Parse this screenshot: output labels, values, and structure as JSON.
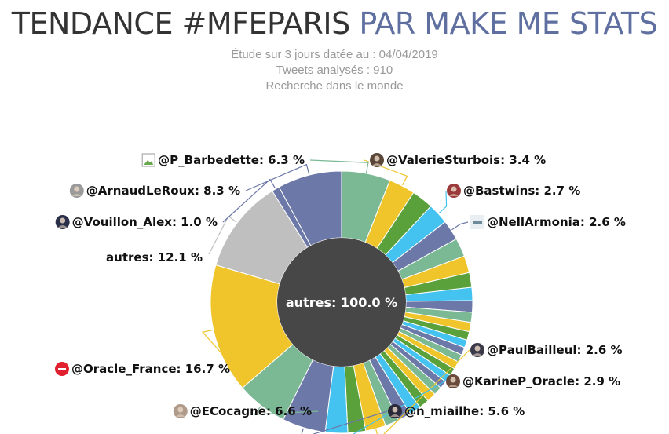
{
  "header": {
    "title_part1": "TENDANCE #MFEPARIS",
    "title_part2": "PAR MAKE ME STATS",
    "subtitle_lines": [
      "Étude sur 3 jours datée au : 04/04/2019",
      "Tweets analysés : 910",
      "Recherche dans le monde"
    ]
  },
  "chart_data": {
    "type": "pie",
    "inner_label": "autres: 100.0 %",
    "series": [
      {
        "name": "@P_Barbedette",
        "value": 6.3,
        "color": "#7bb894"
      },
      {
        "name": "@ValerieSturbois",
        "value": 3.4,
        "color": "#f0c52b"
      },
      {
        "name": "",
        "value": 2.8,
        "color": "#5aa13c"
      },
      {
        "name": "@Bastwins",
        "value": 2.7,
        "color": "#45c3f0"
      },
      {
        "name": "@NellArmonia",
        "value": 2.6,
        "color": "#6c78a8"
      },
      {
        "name": "",
        "value": 2.4,
        "color": "#7bb894"
      },
      {
        "name": "",
        "value": 2.2,
        "color": "#f0c52b"
      },
      {
        "name": "",
        "value": 1.9,
        "color": "#5aa13c"
      },
      {
        "name": "",
        "value": 1.7,
        "color": "#45c3f0"
      },
      {
        "name": "",
        "value": 1.5,
        "color": "#6c78a8"
      },
      {
        "name": "",
        "value": 1.3,
        "color": "#7bb894"
      },
      {
        "name": "",
        "value": 1.2,
        "color": "#f0c52b"
      },
      {
        "name": "",
        "value": 1.1,
        "color": "#5aa13c"
      },
      {
        "name": "",
        "value": 1.0,
        "color": "#45c3f0"
      },
      {
        "name": "",
        "value": 1.0,
        "color": "#6c78a8"
      },
      {
        "name": "",
        "value": 1.0,
        "color": "#7bb894"
      },
      {
        "name": "",
        "value": 1.0,
        "color": "#f0c52b"
      },
      {
        "name": "",
        "value": 1.0,
        "color": "#5aa13c"
      },
      {
        "name": "",
        "value": 1.0,
        "color": "#45c3f0"
      },
      {
        "name": "",
        "value": 1.0,
        "color": "#6c78a8"
      },
      {
        "name": "",
        "value": 1.1,
        "color": "#7bb894"
      },
      {
        "name": "",
        "value": 1.2,
        "color": "#f0c52b"
      },
      {
        "name": "",
        "value": 1.3,
        "color": "#5aa13c"
      },
      {
        "name": "",
        "value": 1.5,
        "color": "#45c3f0"
      },
      {
        "name": "",
        "value": 1.7,
        "color": "#6c78a8"
      },
      {
        "name": "",
        "value": 1.8,
        "color": "#7bb894"
      },
      {
        "name": "@PaulBailleul",
        "value": 2.6,
        "color": "#f0c52b"
      },
      {
        "name": "",
        "value": 2.3,
        "color": "#5aa13c"
      },
      {
        "name": "@KarineP_Oracle",
        "value": 2.9,
        "color": "#45c3f0"
      },
      {
        "name": "@n_miailhe",
        "value": 5.6,
        "color": "#6c78a8"
      },
      {
        "name": "@ECocagne",
        "value": 6.6,
        "color": "#7bb894"
      },
      {
        "name": "@Oracle_France",
        "value": 16.7,
        "color": "#f0c52b"
      },
      {
        "name": "autres",
        "value": 12.1,
        "color": "#bfbfbf"
      },
      {
        "name": "@Vouillon_Alex",
        "value": 1.0,
        "color": "#6c78a8"
      },
      {
        "name": "@ArnaudLeRoux",
        "value": 8.3,
        "color": "#6c78a8"
      }
    ],
    "labels": [
      {
        "name": "@P_Barbedette",
        "text": "@P_Barbedette: 6.3 %",
        "avatar_icon": "broken-image-icon",
        "avatar_color": "#ffffff"
      },
      {
        "name": "@ValerieSturbois",
        "text": "@ValerieSturbois: 3.4 %",
        "avatar_icon": "user-avatar",
        "avatar_color": "#5a4636"
      },
      {
        "name": "@Bastwins",
        "text": "@Bastwins: 2.7 %",
        "avatar_icon": "user-avatar",
        "avatar_color": "#9a3a3a"
      },
      {
        "name": "@NellArmonia",
        "text": "@NellArmonia: 2.6 %",
        "avatar_icon": "logo-avatar",
        "avatar_color": "#e8eef2"
      },
      {
        "name": "@PaulBailleul",
        "text": "@PaulBailleul: 2.6 %",
        "avatar_icon": "user-avatar",
        "avatar_color": "#3a3a4a"
      },
      {
        "name": "@KarineP_Oracle",
        "text": "@KarineP_Oracle: 2.9 %",
        "avatar_icon": "user-avatar",
        "avatar_color": "#6a4a3a"
      },
      {
        "name": "@n_miailhe",
        "text": "@n_miailhe: 5.6 %",
        "avatar_icon": "user-avatar",
        "avatar_color": "#2a2a3a"
      },
      {
        "name": "@ECocagne",
        "text": "@ECocagne: 6.6 %",
        "avatar_icon": "user-avatar",
        "avatar_color": "#b09a8a"
      },
      {
        "name": "@Oracle_France",
        "text": "@Oracle_France: 16.7 %",
        "avatar_icon": "oracle-logo-avatar",
        "avatar_color": "#e0202e"
      },
      {
        "name": "autres",
        "text": "autres: 12.1 %",
        "avatar_icon": "",
        "avatar_color": ""
      },
      {
        "name": "@Vouillon_Alex",
        "text": "@Vouillon_Alex: 1.0 %",
        "avatar_icon": "user-avatar",
        "avatar_color": "#2a2f4a"
      },
      {
        "name": "@ArnaudLeRoux",
        "text": "@ArnaudLeRoux: 8.3 %",
        "avatar_icon": "user-avatar",
        "avatar_color": "#9a9a9a"
      }
    ]
  }
}
